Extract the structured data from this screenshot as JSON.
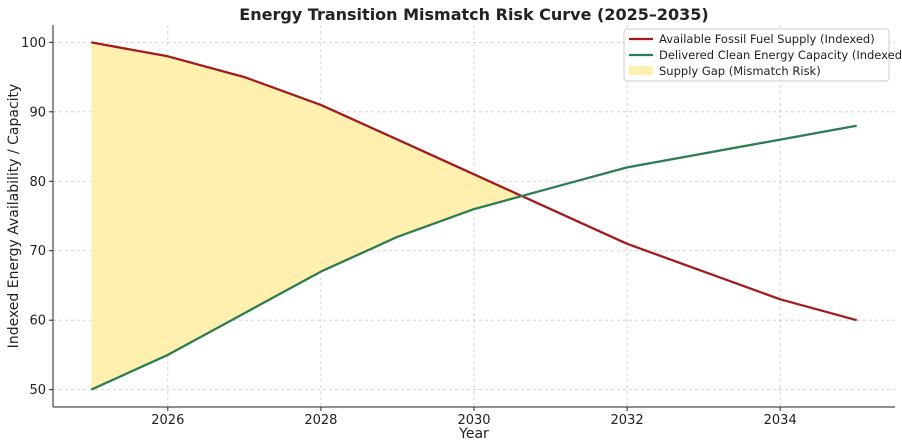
{
  "chart_data": {
    "type": "line",
    "title": "Energy Transition Mismatch Risk Curve (2025–2035)",
    "xlabel": "Year",
    "ylabel": "Indexed Energy Availability / Capacity",
    "xlim": [
      2024.5,
      2035.5
    ],
    "ylim": [
      47.5,
      102.5
    ],
    "xticks": [
      2026,
      2028,
      2030,
      2032,
      2034
    ],
    "yticks": [
      50,
      60,
      70,
      80,
      90,
      100
    ],
    "grid": true,
    "legend_position": "top-right",
    "x": [
      2025,
      2026,
      2027,
      2028,
      2029,
      2030,
      2031,
      2032,
      2033,
      2034,
      2035
    ],
    "series": [
      {
        "name": "Available Fossil Fuel Supply (Indexed)",
        "color": "#a31b1b",
        "values": [
          100,
          98,
          95,
          91,
          86,
          81,
          76,
          71,
          67,
          63,
          60
        ]
      },
      {
        "name": "Delivered Clean Energy Capacity (Indexed)",
        "color": "#2e7d4f",
        "values": [
          50,
          55,
          61,
          67,
          72,
          76,
          79,
          82,
          84,
          86,
          88
        ]
      }
    ],
    "fill": {
      "name": "Supply Gap (Mismatch Risk)",
      "color": "#fff0b0",
      "between": [
        0,
        1
      ],
      "where": "series0_above_series1"
    }
  }
}
